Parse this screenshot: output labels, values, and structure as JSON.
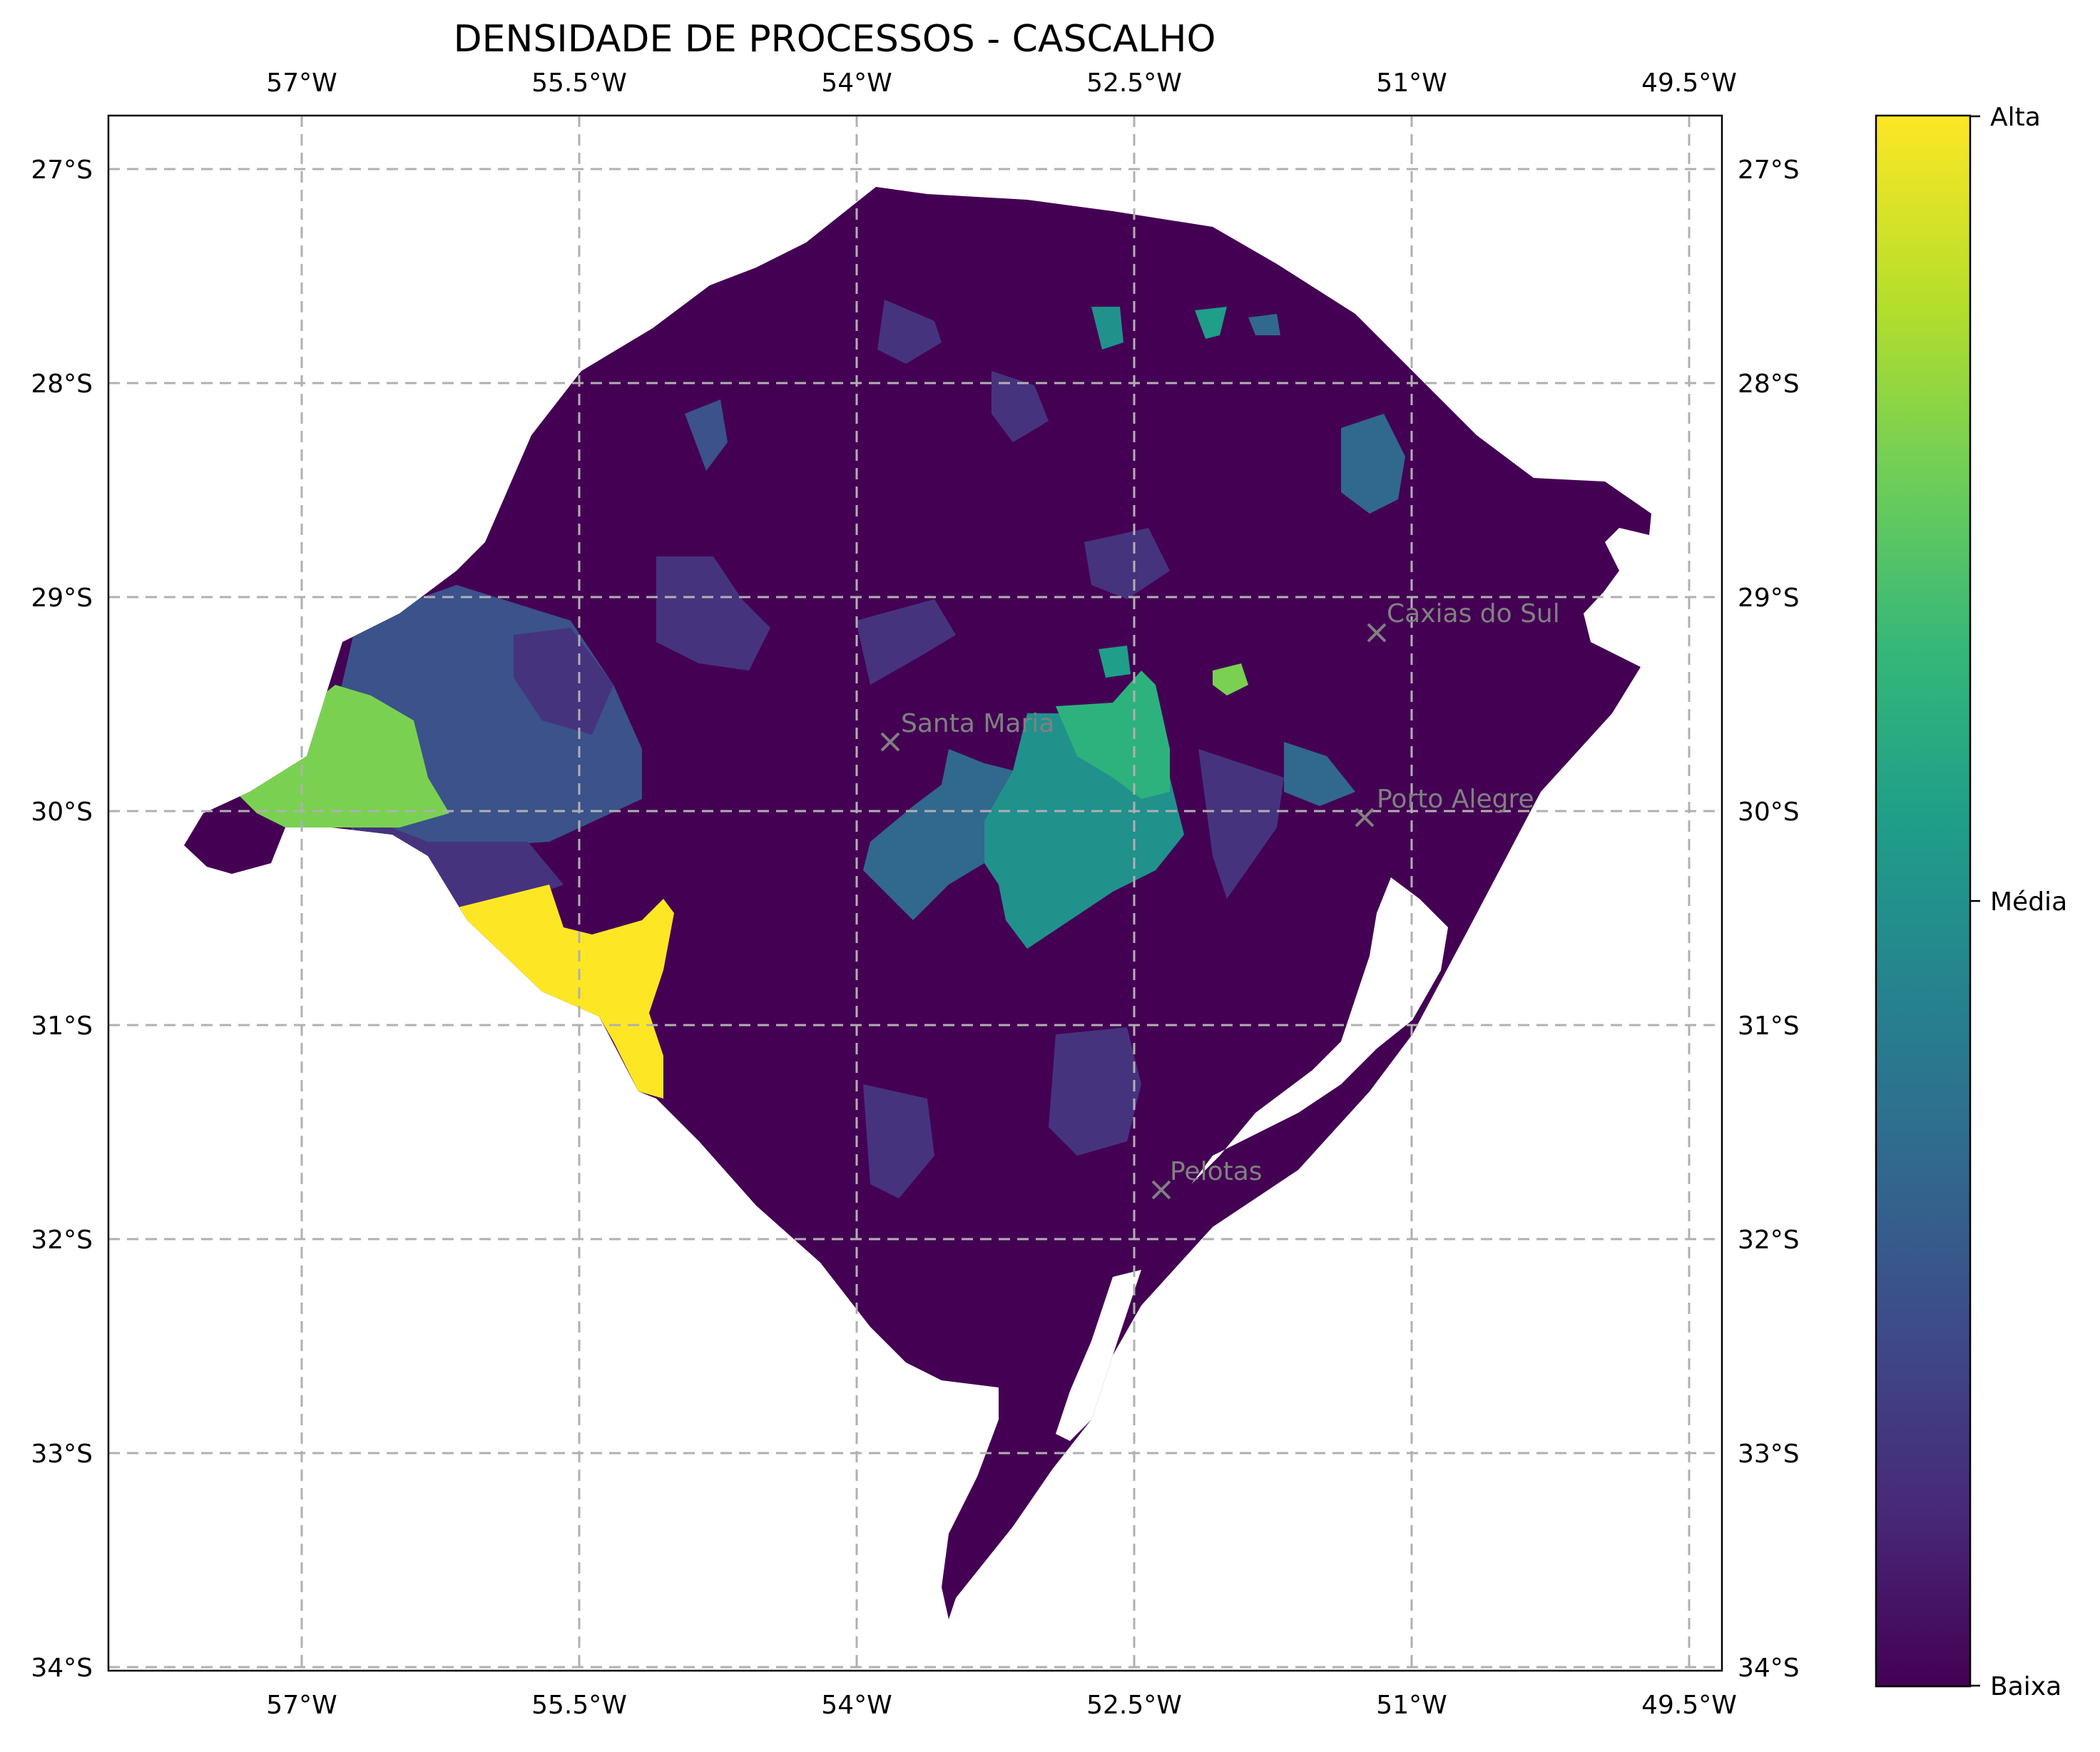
{
  "title": "DENSIDADE DE PROCESSOS - CASCALHO",
  "lon_ticks": [
    "57°W",
    "55.5°W",
    "54°W",
    "52.5°W",
    "51°W",
    "49.5°W"
  ],
  "lat_ticks": [
    "27°S",
    "28°S",
    "29°S",
    "30°S",
    "31°S",
    "32°S",
    "33°S",
    "34°S"
  ],
  "colorbar": {
    "labels": {
      "high": "Alta",
      "mid": "Média",
      "low": "Baixa"
    },
    "stops": [
      "#440154",
      "#482878",
      "#3e4989",
      "#31688e",
      "#26828e",
      "#1f9e89",
      "#35b779",
      "#6ece58",
      "#b5de2b",
      "#fde725"
    ]
  },
  "cities": [
    {
      "name": "Caxias do Sul",
      "lon": -51.18,
      "lat": -29.17
    },
    {
      "name": "Santa Maria",
      "lon": -53.81,
      "lat": -29.69
    },
    {
      "name": "Porto Alegre",
      "lon": -51.23,
      "lat": -30.03
    },
    {
      "name": "Pelotas",
      "lon": -52.34,
      "lat": -31.77
    }
  ],
  "colors": {
    "low": "#440154",
    "low_mid": "#46337e",
    "mid_low": "#3b528b",
    "mid": "#21918c",
    "mid_high": "#2db27d",
    "high_mid": "#7ad151",
    "high": "#fde725",
    "water": "#ffffff"
  },
  "chart_data": {
    "type": "choropleth",
    "region": "Rio Grande do Sul",
    "xlim": [
      -58.05,
      -49.25
    ],
    "ylim": [
      -34.05,
      -26.75
    ],
    "x_ticks": [
      -57,
      -55.5,
      -54,
      -52.5,
      -51,
      -49.5
    ],
    "y_ticks": [
      -27,
      -28,
      -29,
      -30,
      -31,
      -32,
      -33,
      -34
    ],
    "grid": true,
    "colorbar_levels": [
      "Baixa",
      "Média",
      "Alta"
    ],
    "highlighted_areas": [
      {
        "level": "high",
        "lon": -55.3,
        "lat": -30.9
      },
      {
        "level": "high_mid",
        "lon": -56.7,
        "lat": -29.9
      },
      {
        "level": "high_mid",
        "lon": -51.9,
        "lat": -29.4
      },
      {
        "level": "mid_high",
        "lon": -52.55,
        "lat": -29.7
      },
      {
        "level": "mid",
        "lon": -52.95,
        "lat": -30.2
      },
      {
        "level": "mid",
        "lon": -51.55,
        "lat": -28.35
      }
    ]
  }
}
